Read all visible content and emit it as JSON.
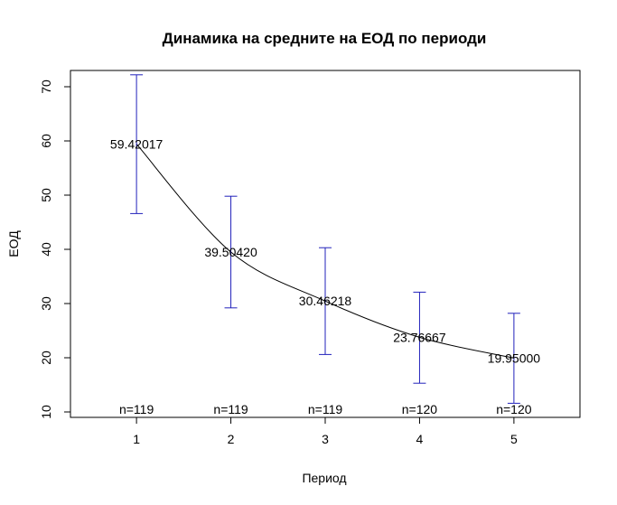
{
  "chart_data": {
    "type": "line",
    "title": "Динамика на средните на ЕОД по периоди",
    "xlabel": "Период",
    "ylabel": "ЕОД",
    "x": [
      1,
      2,
      3,
      4,
      5
    ],
    "xlim": [
      0.3,
      5.7
    ],
    "ylim": [
      9,
      73
    ],
    "xticks": [
      "1",
      "2",
      "3",
      "4",
      "5"
    ],
    "yticks": [
      "10",
      "20",
      "30",
      "40",
      "50",
      "60",
      "70"
    ],
    "means": [
      59.42017,
      39.5042,
      30.46218,
      23.76667,
      19.95
    ],
    "mean_labels": [
      "59.42017",
      "39.50420",
      "30.46218",
      "23.76667",
      "19.95000"
    ],
    "upper": [
      72.2,
      49.8,
      40.3,
      32.1,
      28.2
    ],
    "lower": [
      46.6,
      29.2,
      20.6,
      15.3,
      11.6
    ],
    "n_labels": [
      "n=119",
      "n=119",
      "n=119",
      "n=120",
      "n=120"
    ],
    "n_label_y": 10.5,
    "grid": false,
    "colors": {
      "errorbar": "#2222bb",
      "line": "#000000",
      "frame": "#000000"
    }
  }
}
